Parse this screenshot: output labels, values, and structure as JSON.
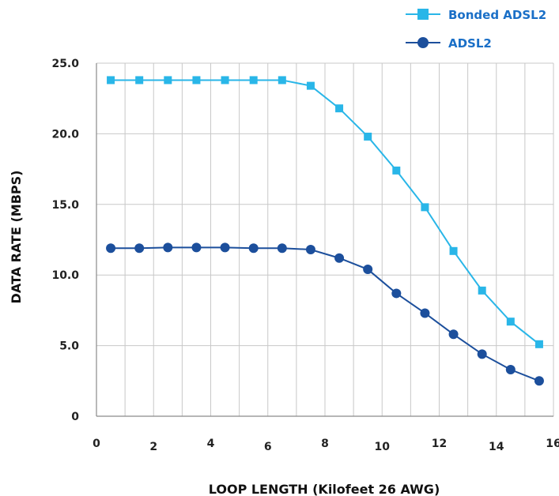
{
  "chart_data": {
    "type": "line",
    "xlabel": "LOOP LENGTH (Kilofeet 26 AWG)",
    "ylabel": "DATA RATE (MBPS)",
    "xlim": [
      0,
      16
    ],
    "ylim": [
      0,
      25
    ],
    "x_ticks": [
      "0",
      "2",
      "4",
      "6",
      "8",
      "10",
      "12",
      "14",
      "16"
    ],
    "y_ticks": [
      "0",
      "5.0",
      "10.0",
      "15.0",
      "20.0",
      "25.0"
    ],
    "grid": true,
    "legend": "top-right",
    "series": [
      {
        "name": "Bonded ADSL2",
        "color": "#29b6e8",
        "marker": "square",
        "x": [
          0.5,
          1.5,
          2.5,
          3.5,
          4.5,
          5.5,
          6.5,
          7.5,
          8.5,
          9.5,
          10.5,
          11.5,
          12.5,
          13.5,
          14.5,
          15.5
        ],
        "y": [
          23.8,
          23.8,
          23.8,
          23.8,
          23.8,
          23.8,
          23.8,
          23.4,
          21.8,
          19.8,
          17.4,
          14.8,
          11.7,
          8.9,
          6.7,
          5.1
        ]
      },
      {
        "name": "ADSL2",
        "color": "#1c4f9c",
        "marker": "circle",
        "x": [
          0.5,
          1.5,
          2.5,
          3.5,
          4.5,
          5.5,
          6.5,
          7.5,
          8.5,
          9.5,
          10.5,
          11.5,
          12.5,
          13.5,
          14.5,
          15.5
        ],
        "y": [
          11.9,
          11.9,
          11.95,
          11.95,
          11.95,
          11.9,
          11.9,
          11.8,
          11.2,
          10.4,
          8.7,
          7.3,
          5.8,
          4.4,
          3.3,
          2.5
        ]
      }
    ]
  }
}
